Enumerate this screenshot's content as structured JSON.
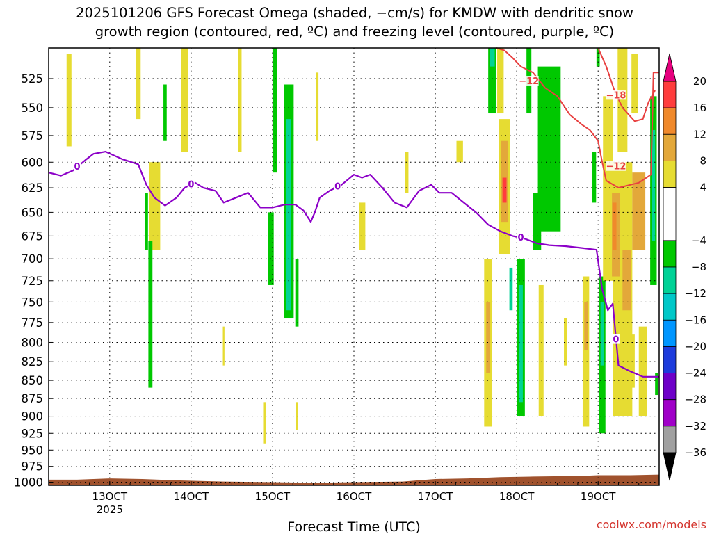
{
  "chart_data": {
    "type": "heatmap",
    "title_lines": [
      "2025101206 GFS Forecast Omega (shaded, −cm/s) for KMDW with dendritic snow",
      "growth region (contoured, red, ºC) and freezing level (contoured, purple, ºC)"
    ],
    "xlabel": "Forecast Time (UTC)",
    "ylabel": "",
    "credit": "coolwx.com/models",
    "x_ticks": [
      {
        "day": 13,
        "label": "13OCT",
        "sublabel": "2025"
      },
      {
        "day": 14,
        "label": "14OCT",
        "sublabel": ""
      },
      {
        "day": 15,
        "label": "15OCT",
        "sublabel": ""
      },
      {
        "day": 16,
        "label": "16OCT",
        "sublabel": ""
      },
      {
        "day": 17,
        "label": "17OCT",
        "sublabel": ""
      },
      {
        "day": 18,
        "label": "18OCT",
        "sublabel": ""
      },
      {
        "day": 19,
        "label": "19OCT",
        "sublabel": ""
      }
    ],
    "xlim_days": [
      12.25,
      19.75
    ],
    "y_ticks": [
      "525",
      "550",
      "575",
      "600",
      "625",
      "650",
      "675",
      "700",
      "725",
      "750",
      "775",
      "800",
      "825",
      "850",
      "875",
      "900",
      "925",
      "950",
      "975",
      "1000"
    ],
    "ylim_hpa": [
      1005,
      500
    ],
    "grid": true,
    "colorbar": {
      "ticks": [
        "20",
        "16",
        "12",
        "8",
        "4",
        "−4",
        "−8",
        "−12",
        "−16",
        "−20",
        "−24",
        "−28",
        "−32",
        "−36"
      ],
      "bands": [
        {
          "from": 16,
          "to": 20,
          "color": "#ff3d3d"
        },
        {
          "from": 12,
          "to": 16,
          "color": "#f0892b"
        },
        {
          "from": 8,
          "to": 12,
          "color": "#e3a83a"
        },
        {
          "from": 4,
          "to": 8,
          "color": "#e6dc32"
        },
        {
          "from": -4,
          "to": 4,
          "color": "#ffffff"
        },
        {
          "from": -8,
          "to": -4,
          "color": "#00c800"
        },
        {
          "from": -12,
          "to": -8,
          "color": "#00d296"
        },
        {
          "from": -16,
          "to": -12,
          "color": "#00c8c8"
        },
        {
          "from": -20,
          "to": -16,
          "color": "#0096ff"
        },
        {
          "from": -24,
          "to": -20,
          "color": "#1e3cdc"
        },
        {
          "from": -28,
          "to": -24,
          "color": "#6e00c8"
        },
        {
          "from": -32,
          "to": -28,
          "color": "#a000c8"
        },
        {
          "from": -36,
          "to": -32,
          "color": "#a0a0a0"
        }
      ],
      "top_arrow_color": "#e6007e",
      "bottom_arrow_color": "#000000"
    },
    "ground_color": "#a0522d",
    "ground_top_hpa": [
      {
        "day": 12.25,
        "p": 996
      },
      {
        "day": 12.6,
        "p": 996
      },
      {
        "day": 12.8,
        "p": 995
      },
      {
        "day": 13.0,
        "p": 994
      },
      {
        "day": 13.4,
        "p": 995
      },
      {
        "day": 13.8,
        "p": 997
      },
      {
        "day": 14.4,
        "p": 999
      },
      {
        "day": 15.0,
        "p": 1000
      },
      {
        "day": 15.5,
        "p": 1001
      },
      {
        "day": 16.0,
        "p": 1000
      },
      {
        "day": 16.6,
        "p": 999
      },
      {
        "day": 16.8,
        "p": 997
      },
      {
        "day": 17.0,
        "p": 995
      },
      {
        "day": 17.4,
        "p": 994
      },
      {
        "day": 17.8,
        "p": 992
      },
      {
        "day": 18.2,
        "p": 991
      },
      {
        "day": 18.8,
        "p": 990
      },
      {
        "day": 19.0,
        "p": 989
      },
      {
        "day": 19.4,
        "p": 989
      },
      {
        "day": 19.75,
        "p": 988
      }
    ],
    "omega_areas": [
      {
        "color": "#e6dc32",
        "day": 12.5,
        "p_top": 505,
        "p_bottom": 585,
        "halfwidth": 0.03
      },
      {
        "color": "#e6dc32",
        "day": 13.35,
        "p_top": 500,
        "p_bottom": 560,
        "halfwidth": 0.03
      },
      {
        "color": "#e6dc32",
        "day": 13.55,
        "p_top": 600,
        "p_bottom": 690,
        "halfwidth": 0.07
      },
      {
        "color": "#00c800",
        "day": 13.45,
        "p_top": 630,
        "p_bottom": 690,
        "halfwidth": 0.02
      },
      {
        "color": "#00c800",
        "day": 13.5,
        "p_top": 680,
        "p_bottom": 860,
        "halfwidth": 0.025
      },
      {
        "color": "#00c800",
        "day": 13.68,
        "p_top": 530,
        "p_bottom": 580,
        "halfwidth": 0.02
      },
      {
        "color": "#e6dc32",
        "day": 13.92,
        "p_top": 500,
        "p_bottom": 590,
        "halfwidth": 0.04
      },
      {
        "color": "#00c800",
        "day": 15.03,
        "p_top": 500,
        "p_bottom": 610,
        "halfwidth": 0.03
      },
      {
        "color": "#e6dc32",
        "day": 14.6,
        "p_top": 500,
        "p_bottom": 590,
        "halfwidth": 0.02
      },
      {
        "color": "#00c800",
        "day": 15.2,
        "p_top": 530,
        "p_bottom": 770,
        "halfwidth": 0.06
      },
      {
        "color": "#00d296",
        "day": 15.2,
        "p_top": 560,
        "p_bottom": 760,
        "halfwidth": 0.03
      },
      {
        "color": "#00c800",
        "day": 14.98,
        "p_top": 650,
        "p_bottom": 730,
        "halfwidth": 0.035
      },
      {
        "color": "#00c800",
        "day": 15.3,
        "p_top": 700,
        "p_bottom": 780,
        "halfwidth": 0.02
      },
      {
        "color": "#e6dc32",
        "day": 14.4,
        "p_top": 780,
        "p_bottom": 830,
        "halfwidth": 0.01
      },
      {
        "color": "#e6dc32",
        "day": 14.9,
        "p_top": 880,
        "p_bottom": 940,
        "halfwidth": 0.015
      },
      {
        "color": "#e6dc32",
        "day": 15.3,
        "p_top": 880,
        "p_bottom": 920,
        "halfwidth": 0.015
      },
      {
        "color": "#e6dc32",
        "day": 15.55,
        "p_top": 520,
        "p_bottom": 580,
        "halfwidth": 0.015
      },
      {
        "color": "#e6dc32",
        "day": 16.1,
        "p_top": 640,
        "p_bottom": 690,
        "halfwidth": 0.04
      },
      {
        "color": "#e6dc32",
        "day": 16.65,
        "p_top": 590,
        "p_bottom": 630,
        "halfwidth": 0.02
      },
      {
        "color": "#e6dc32",
        "day": 17.3,
        "p_top": 580,
        "p_bottom": 600,
        "halfwidth": 0.04
      },
      {
        "color": "#00c800",
        "day": 17.7,
        "p_top": 500,
        "p_bottom": 555,
        "halfwidth": 0.05
      },
      {
        "color": "#00d296",
        "day": 17.7,
        "p_top": 500,
        "p_bottom": 515,
        "halfwidth": 0.03
      },
      {
        "color": "#e6dc32",
        "day": 17.8,
        "p_top": 500,
        "p_bottom": 555,
        "halfwidth": 0.04
      },
      {
        "color": "#e6dc32",
        "day": 17.65,
        "p_top": 700,
        "p_bottom": 915,
        "halfwidth": 0.05
      },
      {
        "color": "#e3a83a",
        "day": 17.65,
        "p_top": 750,
        "p_bottom": 840,
        "halfwidth": 0.025
      },
      {
        "color": "#00c800",
        "day": 18.15,
        "p_top": 500,
        "p_bottom": 555,
        "halfwidth": 0.03
      },
      {
        "color": "#e6dc32",
        "day": 17.85,
        "p_top": 560,
        "p_bottom": 695,
        "halfwidth": 0.07
      },
      {
        "color": "#e3a83a",
        "day": 17.85,
        "p_top": 580,
        "p_bottom": 660,
        "halfwidth": 0.04
      },
      {
        "color": "#ff3d3d",
        "day": 17.85,
        "p_top": 615,
        "p_bottom": 640,
        "halfwidth": 0.025
      },
      {
        "color": "#00c800",
        "day": 18.4,
        "p_top": 515,
        "p_bottom": 670,
        "halfwidth": 0.14
      },
      {
        "color": "#00c800",
        "day": 18.25,
        "p_top": 630,
        "p_bottom": 690,
        "halfwidth": 0.05
      },
      {
        "color": "#00c800",
        "day": 18.05,
        "p_top": 700,
        "p_bottom": 900,
        "halfwidth": 0.05
      },
      {
        "color": "#00d296",
        "day": 18.05,
        "p_top": 730,
        "p_bottom": 880,
        "halfwidth": 0.025
      },
      {
        "color": "#e6dc32",
        "day": 18.3,
        "p_top": 730,
        "p_bottom": 900,
        "halfwidth": 0.03
      },
      {
        "color": "#00d296",
        "day": 17.93,
        "p_top": 710,
        "p_bottom": 760,
        "halfwidth": 0.02
      },
      {
        "color": "#e6dc32",
        "day": 18.6,
        "p_top": 770,
        "p_bottom": 830,
        "halfwidth": 0.02
      },
      {
        "color": "#e6dc32",
        "day": 18.85,
        "p_top": 720,
        "p_bottom": 915,
        "halfwidth": 0.04
      },
      {
        "color": "#e3a83a",
        "day": 18.85,
        "p_top": 750,
        "p_bottom": 810,
        "halfwidth": 0.02
      },
      {
        "color": "#00c800",
        "day": 18.95,
        "p_top": 590,
        "p_bottom": 640,
        "halfwidth": 0.025
      },
      {
        "color": "#00c800",
        "day": 19.0,
        "p_top": 500,
        "p_bottom": 515,
        "halfwidth": 0.02
      },
      {
        "color": "#00c800",
        "day": 19.05,
        "p_top": 720,
        "p_bottom": 925,
        "halfwidth": 0.04
      },
      {
        "color": "#00d296",
        "day": 19.05,
        "p_top": 750,
        "p_bottom": 830,
        "halfwidth": 0.02
      },
      {
        "color": "#e6dc32",
        "day": 19.12,
        "p_top": 540,
        "p_bottom": 725,
        "halfwidth": 0.06
      },
      {
        "color": "#e6dc32",
        "day": 19.3,
        "p_top": 500,
        "p_bottom": 590,
        "halfwidth": 0.06
      },
      {
        "color": "#e6dc32",
        "day": 19.45,
        "p_top": 505,
        "p_bottom": 555,
        "halfwidth": 0.04
      },
      {
        "color": "#e6dc32",
        "day": 19.3,
        "p_top": 600,
        "p_bottom": 900,
        "halfwidth": 0.12
      },
      {
        "color": "#e3a83a",
        "day": 19.22,
        "p_top": 630,
        "p_bottom": 720,
        "halfwidth": 0.05
      },
      {
        "color": "#f0892b",
        "day": 19.2,
        "p_top": 640,
        "p_bottom": 690,
        "halfwidth": 0.025
      },
      {
        "color": "#e3a83a",
        "day": 19.5,
        "p_top": 610,
        "p_bottom": 690,
        "halfwidth": 0.08
      },
      {
        "color": "#e3a83a",
        "day": 19.35,
        "p_top": 690,
        "p_bottom": 760,
        "halfwidth": 0.05
      },
      {
        "color": "#e6dc32",
        "day": 19.55,
        "p_top": 780,
        "p_bottom": 900,
        "halfwidth": 0.05
      },
      {
        "color": "#e6dc32",
        "day": 19.42,
        "p_top": 790,
        "p_bottom": 860,
        "halfwidth": 0.03
      },
      {
        "color": "#00c800",
        "day": 19.68,
        "p_top": 540,
        "p_bottom": 730,
        "halfwidth": 0.04
      },
      {
        "color": "#00d296",
        "day": 19.68,
        "p_top": 570,
        "p_bottom": 680,
        "halfwidth": 0.02
      },
      {
        "color": "#00c800",
        "day": 19.72,
        "p_top": 840,
        "p_bottom": 870,
        "halfwidth": 0.02
      }
    ],
    "freezing_level": {
      "color": "#8c00c8",
      "label": "0",
      "label_days": [
        12.6,
        14.0,
        15.8,
        18.05,
        19.22
      ],
      "points": [
        {
          "day": 12.25,
          "p": 610
        },
        {
          "day": 12.4,
          "p": 613
        },
        {
          "day": 12.55,
          "p": 608
        },
        {
          "day": 12.7,
          "p": 598
        },
        {
          "day": 12.8,
          "p": 592
        },
        {
          "day": 12.95,
          "p": 590
        },
        {
          "day": 13.15,
          "p": 597
        },
        {
          "day": 13.35,
          "p": 602
        },
        {
          "day": 13.45,
          "p": 622
        },
        {
          "day": 13.55,
          "p": 635
        },
        {
          "day": 13.68,
          "p": 643
        },
        {
          "day": 13.82,
          "p": 635
        },
        {
          "day": 13.92,
          "p": 625
        },
        {
          "day": 14.05,
          "p": 620
        },
        {
          "day": 14.15,
          "p": 625
        },
        {
          "day": 14.3,
          "p": 628
        },
        {
          "day": 14.4,
          "p": 640
        },
        {
          "day": 14.55,
          "p": 635
        },
        {
          "day": 14.7,
          "p": 630
        },
        {
          "day": 14.85,
          "p": 645
        },
        {
          "day": 15.0,
          "p": 645
        },
        {
          "day": 15.15,
          "p": 642
        },
        {
          "day": 15.28,
          "p": 642
        },
        {
          "day": 15.38,
          "p": 648
        },
        {
          "day": 15.47,
          "p": 660
        },
        {
          "day": 15.52,
          "p": 650
        },
        {
          "day": 15.58,
          "p": 635
        },
        {
          "day": 15.7,
          "p": 628
        },
        {
          "day": 15.85,
          "p": 622
        },
        {
          "day": 16.0,
          "p": 612
        },
        {
          "day": 16.1,
          "p": 615
        },
        {
          "day": 16.2,
          "p": 612
        },
        {
          "day": 16.35,
          "p": 625
        },
        {
          "day": 16.5,
          "p": 640
        },
        {
          "day": 16.65,
          "p": 645
        },
        {
          "day": 16.8,
          "p": 628
        },
        {
          "day": 16.95,
          "p": 622
        },
        {
          "day": 17.05,
          "p": 630
        },
        {
          "day": 17.2,
          "p": 630
        },
        {
          "day": 17.35,
          "p": 640
        },
        {
          "day": 17.5,
          "p": 650
        },
        {
          "day": 17.65,
          "p": 663
        },
        {
          "day": 17.8,
          "p": 670
        },
        {
          "day": 17.95,
          "p": 675
        },
        {
          "day": 18.1,
          "p": 678
        },
        {
          "day": 18.25,
          "p": 683
        },
        {
          "day": 18.4,
          "p": 685
        },
        {
          "day": 18.6,
          "p": 686
        },
        {
          "day": 18.8,
          "p": 688
        },
        {
          "day": 18.98,
          "p": 690
        },
        {
          "day": 19.05,
          "p": 735
        },
        {
          "day": 19.12,
          "p": 760
        },
        {
          "day": 19.18,
          "p": 752
        },
        {
          "day": 19.25,
          "p": 830
        },
        {
          "day": 19.4,
          "p": 838
        },
        {
          "day": 19.55,
          "p": 845
        },
        {
          "day": 19.75,
          "p": 845
        }
      ]
    },
    "dgz_contours": {
      "color": "#e84040",
      "lines": [
        {
          "label": "−12",
          "label_day": 18.15,
          "label_p": 528,
          "points": [
            {
              "day": 17.75,
              "p": 500
            },
            {
              "day": 17.85,
              "p": 502
            },
            {
              "day": 17.95,
              "p": 508
            },
            {
              "day": 18.05,
              "p": 515
            },
            {
              "day": 18.2,
              "p": 520
            },
            {
              "day": 18.35,
              "p": 533
            },
            {
              "day": 18.5,
              "p": 540
            },
            {
              "day": 18.65,
              "p": 556
            },
            {
              "day": 18.8,
              "p": 565
            },
            {
              "day": 18.9,
              "p": 570
            },
            {
              "day": 19.0,
              "p": 580
            },
            {
              "day": 19.05,
              "p": 600
            },
            {
              "day": 19.1,
              "p": 618
            },
            {
              "day": 19.25,
              "p": 625
            },
            {
              "day": 19.5,
              "p": 620
            },
            {
              "day": 19.65,
              "p": 612
            },
            {
              "day": 19.68,
              "p": 520
            },
            {
              "day": 19.75,
              "p": 520
            }
          ]
        },
        {
          "label": "−18",
          "label_day": 19.22,
          "label_p": 540,
          "points": [
            {
              "day": 19.0,
              "p": 500
            },
            {
              "day": 19.1,
              "p": 515
            },
            {
              "day": 19.2,
              "p": 535
            },
            {
              "day": 19.3,
              "p": 550
            },
            {
              "day": 19.45,
              "p": 562
            },
            {
              "day": 19.55,
              "p": 560
            },
            {
              "day": 19.62,
              "p": 545
            },
            {
              "day": 19.7,
              "p": 535
            }
          ]
        }
      ],
      "extra_label": {
        "label": "−12",
        "day": 19.22,
        "p": 605
      }
    }
  }
}
